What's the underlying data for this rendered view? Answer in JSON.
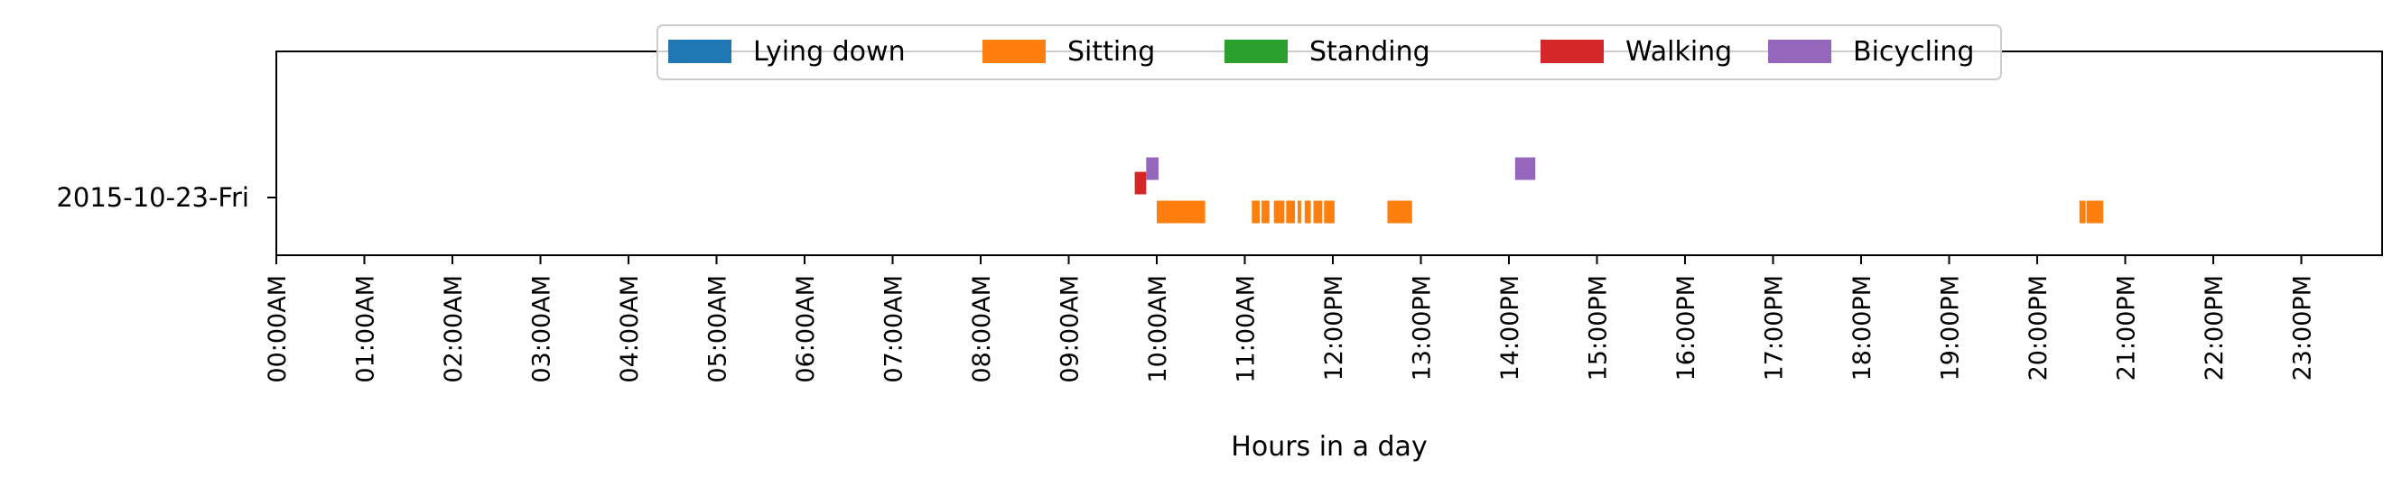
{
  "chart_data": {
    "type": "timeline",
    "title": "",
    "xlabel": "Hours in a day",
    "ylabel": "",
    "xlim": [
      0,
      24
    ],
    "row_labels": [
      "2015-10-23-Fri"
    ],
    "x_tick_labels": [
      "00:00AM",
      "01:00AM",
      "02:00AM",
      "03:00AM",
      "04:00AM",
      "05:00AM",
      "06:00AM",
      "07:00AM",
      "08:00AM",
      "09:00AM",
      "10:00AM",
      "11:00AM",
      "12:00PM",
      "13:00PM",
      "14:00PM",
      "15:00PM",
      "16:00PM",
      "17:00PM",
      "18:00PM",
      "19:00PM",
      "20:00PM",
      "21:00PM",
      "22:00PM",
      "23:00PM"
    ],
    "legend_position": "top-center",
    "grid": false,
    "series": [
      {
        "name": "Lying down",
        "color": "#1f77b4",
        "intervals": []
      },
      {
        "name": "Sitting",
        "color": "#ff7f0e",
        "intervals": [
          [
            10.0,
            10.55
          ],
          [
            11.08,
            11.17
          ],
          [
            11.19,
            11.28
          ],
          [
            11.33,
            11.45
          ],
          [
            11.47,
            11.57
          ],
          [
            11.6,
            11.64
          ],
          [
            11.68,
            11.75
          ],
          [
            11.78,
            11.88
          ],
          [
            11.9,
            12.02
          ],
          [
            12.62,
            12.9
          ],
          [
            20.48,
            20.55
          ],
          [
            20.56,
            20.75
          ]
        ]
      },
      {
        "name": "Standing",
        "color": "#2ca02c",
        "intervals": []
      },
      {
        "name": "Walking",
        "color": "#d62728",
        "intervals": [
          [
            9.75,
            9.88
          ]
        ]
      },
      {
        "name": "Bicycling",
        "color": "#9467bd",
        "intervals": [
          [
            9.88,
            10.02
          ],
          [
            14.07,
            14.3
          ]
        ]
      }
    ]
  }
}
